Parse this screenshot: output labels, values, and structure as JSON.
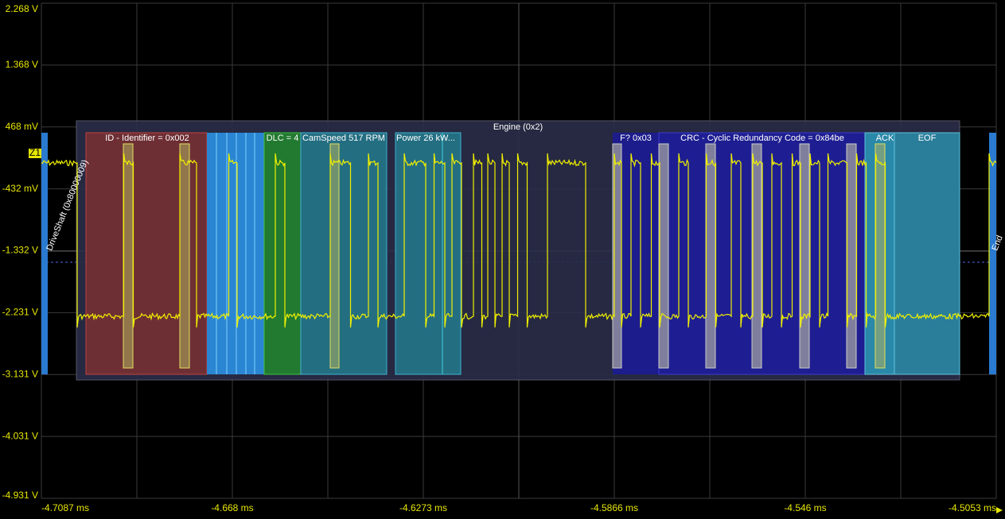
{
  "y_axis_labels": [
    "2.268 V",
    "1.368 V",
    "468 mV",
    "-432 mV",
    "-1.332 V",
    "-2.231 V",
    "-3.131 V",
    "-4.031 V",
    "-4.931 V"
  ],
  "x_axis_labels": [
    "-4.7087 ms",
    "-4.668 ms",
    "-4.6273 ms",
    "-4.5866 ms",
    "-4.546 ms",
    "-4.5053 ms"
  ],
  "marker": "Z1",
  "frame": {
    "title": "Engine (0x2)"
  },
  "segments": [
    "ID - Identifier = 0x002",
    "DLC = 4",
    "CamSpeed 517 RPM",
    "Power 26 kW...",
    "F? 0x03",
    "CRC - Cyclic Redundancy Code = 0x84be",
    "ACK",
    "EOF"
  ],
  "side_labels": [
    "DriveShaft (0x80000009)",
    "End"
  ]
}
